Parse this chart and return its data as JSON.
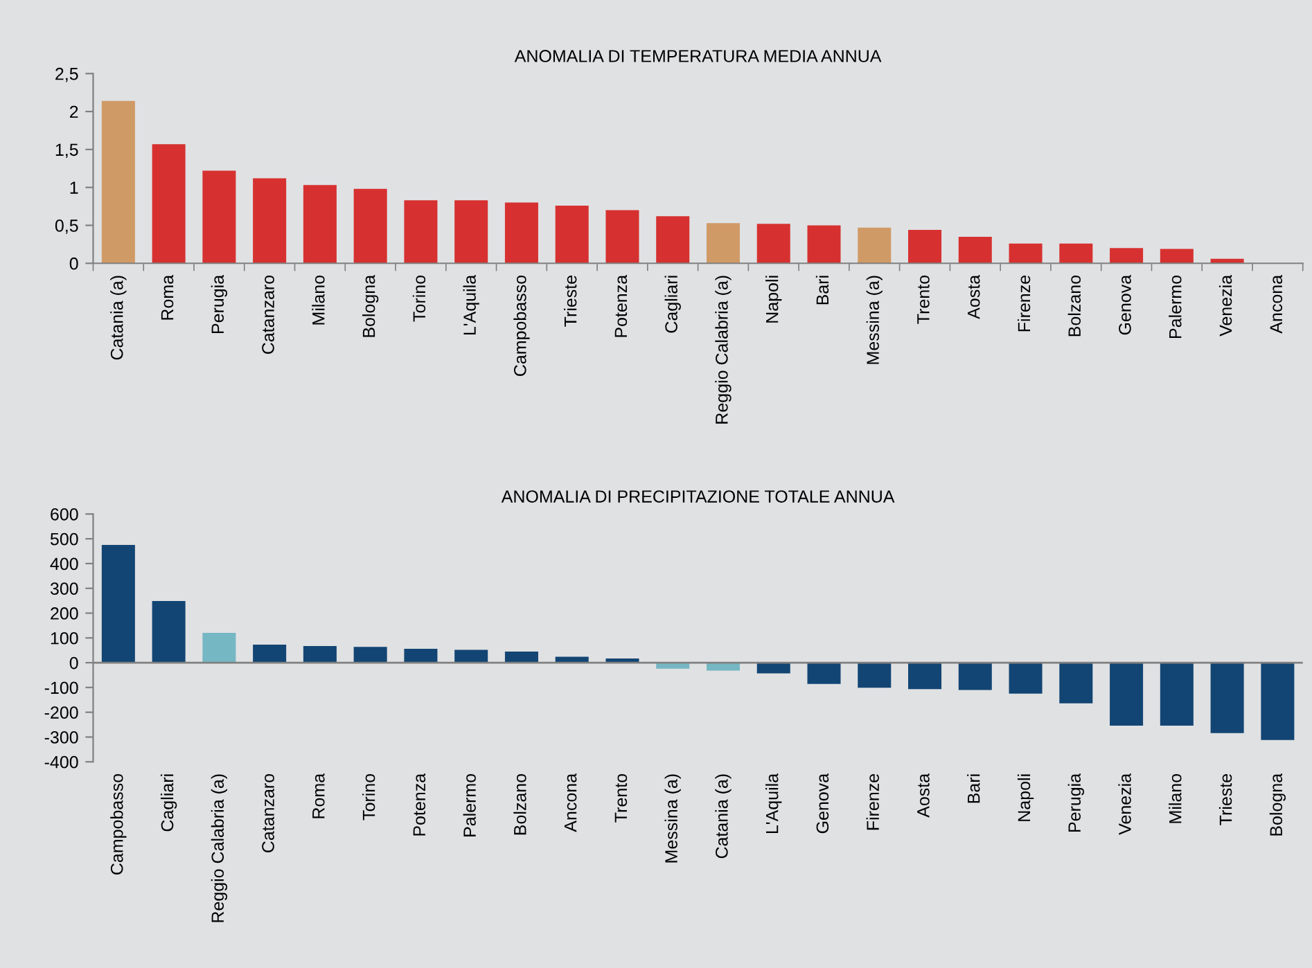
{
  "chart_data": [
    {
      "type": "bar",
      "title": "ANOMALIA DI TEMPERATURA MEDIA ANNUA",
      "categories": [
        "Catania (a)",
        "Roma",
        "Perugia",
        "Catanzaro",
        "Milano",
        "Bologna",
        "Torino",
        "L'Aquila",
        "Campobasso",
        "Trieste",
        "Potenza",
        "Cagliari",
        "Reggio Calabria (a)",
        "Napoli",
        "Bari",
        "Messina (a)",
        "Trento",
        "Aosta",
        "Firenze",
        "Bolzano",
        "Genova",
        "Palermo",
        "Venezia",
        "Ancona"
      ],
      "values": [
        2.14,
        1.57,
        1.22,
        1.12,
        1.03,
        0.98,
        0.83,
        0.83,
        0.8,
        0.76,
        0.7,
        0.62,
        0.53,
        0.52,
        0.5,
        0.47,
        0.44,
        0.35,
        0.26,
        0.26,
        0.2,
        0.19,
        0.06,
        0
      ],
      "colors": [
        "#d09a66",
        "#d63130",
        "#d63130",
        "#d63130",
        "#d63130",
        "#d63130",
        "#d63130",
        "#d63130",
        "#d63130",
        "#d63130",
        "#d63130",
        "#d63130",
        "#d09a66",
        "#d63130",
        "#d63130",
        "#d09a66",
        "#d63130",
        "#d63130",
        "#d63130",
        "#d63130",
        "#d63130",
        "#d63130",
        "#d63130",
        "#d63130"
      ],
      "ylim": [
        0,
        2.5
      ],
      "yticks": [
        0,
        {
          "value": 0.5,
          "label": "0,5"
        },
        1,
        {
          "value": 1.5,
          "label": "1,5"
        },
        2,
        {
          "value": 2.5,
          "label": "2,5"
        }
      ],
      "grid": false,
      "legend": false
    },
    {
      "type": "bar",
      "title": "ANOMALIA DI PRECIPITAZIONE TOTALE ANNUA",
      "categories": [
        "Campobasso",
        "Cagliari",
        "Reggio Calabria (a)",
        "Catanzaro",
        "Roma",
        "Torino",
        "Potenza",
        "Palermo",
        "Bolzano",
        "Ancona",
        "Trento",
        "Messina (a)",
        "Catania (a)",
        "L'Aquila",
        "Genova",
        "Firenze",
        "Aosta",
        "Bari",
        "Napoli",
        "Perugia",
        "Venezia",
        "Milano",
        "Trieste",
        "Bologna"
      ],
      "values": [
        475,
        249,
        120,
        73,
        67,
        64,
        56,
        52,
        45,
        24,
        17,
        -24,
        -32,
        -43,
        -86,
        -101,
        -107,
        -110,
        -125,
        -164,
        -254,
        -254,
        -284,
        -312
      ],
      "colors": [
        "#124573",
        "#124573",
        "#76b7c4",
        "#124573",
        "#124573",
        "#124573",
        "#124573",
        "#124573",
        "#124573",
        "#124573",
        "#124573",
        "#76b7c4",
        "#76b7c4",
        "#124573",
        "#124573",
        "#124573",
        "#124573",
        "#124573",
        "#124573",
        "#124573",
        "#124573",
        "#124573",
        "#124573",
        "#124573"
      ],
      "ylim": [
        -400,
        600
      ],
      "yticks": [
        -400,
        -300,
        -200,
        -100,
        0,
        100,
        200,
        300,
        400,
        500,
        600
      ],
      "ref_lines": [
        {
          "axis": "y",
          "value": 0,
          "color": "#808080"
        }
      ],
      "grid": false,
      "legend": false
    }
  ]
}
